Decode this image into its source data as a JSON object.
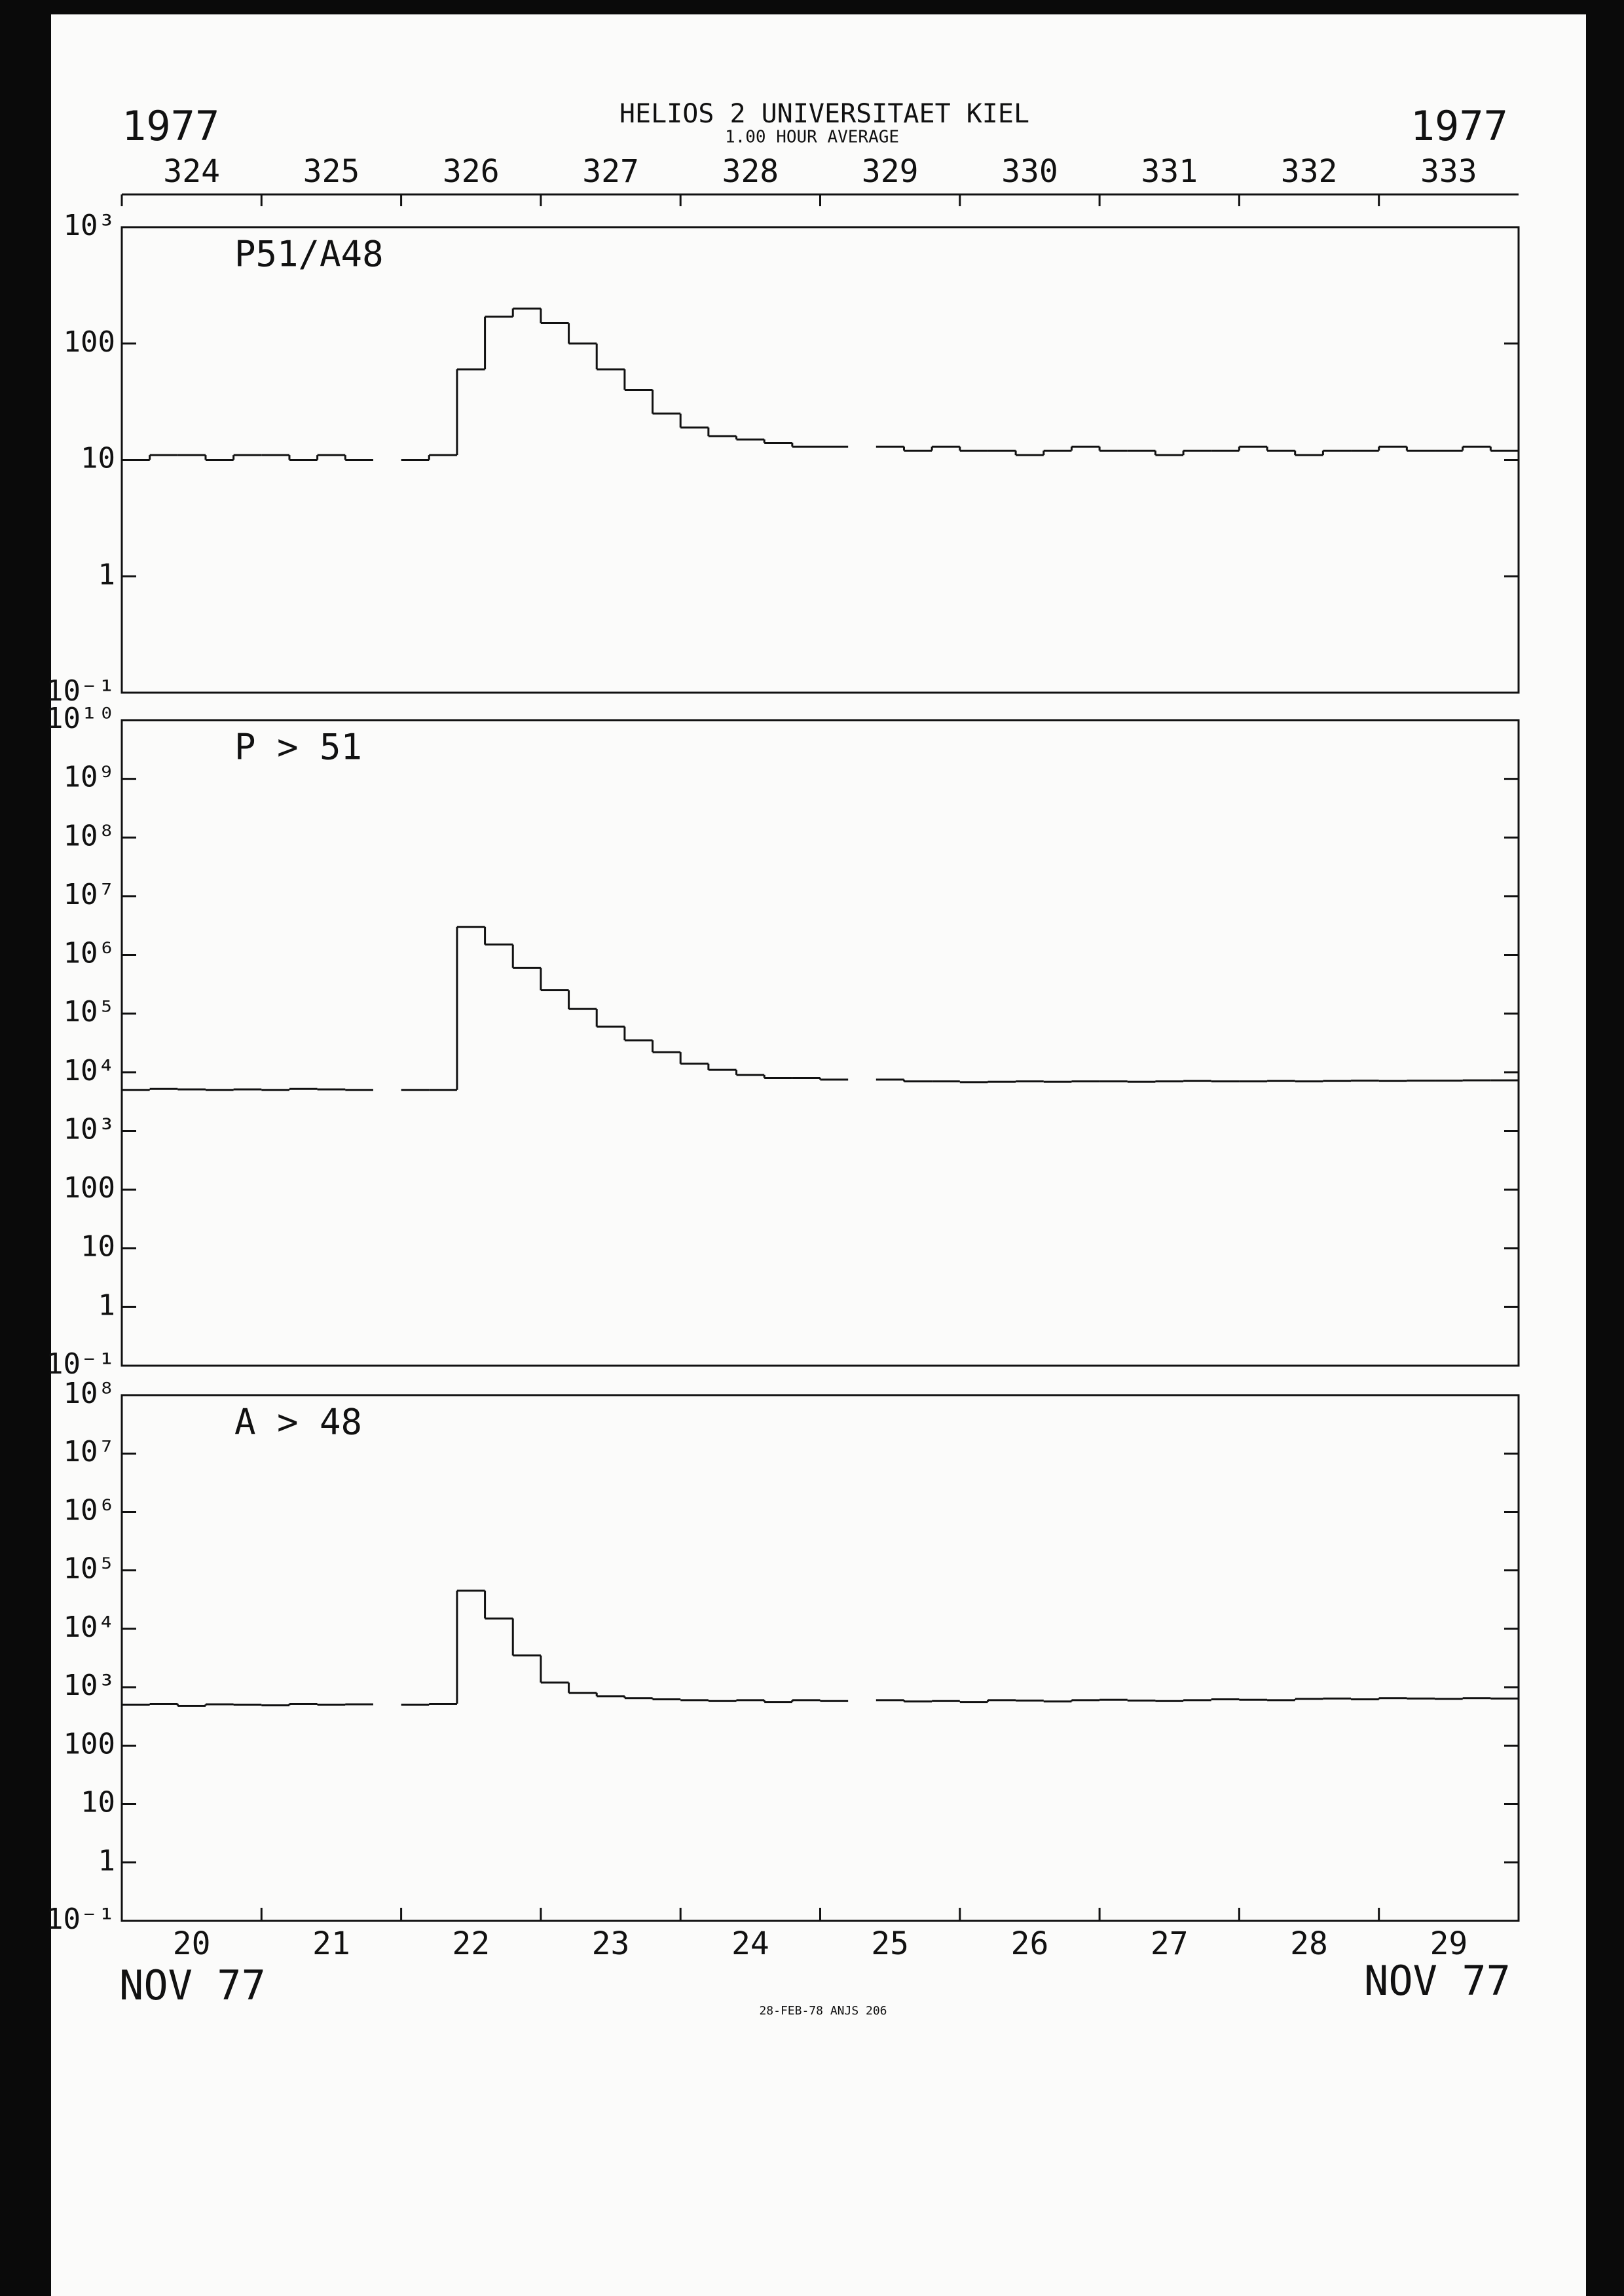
{
  "header": {
    "title": "HELIOS 2  UNIVERSITAET KIEL",
    "subtitle": "1.00 HOUR AVERAGE",
    "year_left": "1977",
    "year_right": "1977"
  },
  "footer": {
    "month_left": "NOV 77",
    "month_right": "NOV 77",
    "stamp": "28-FEB-78 ANJS 206"
  },
  "chart_data": [
    {
      "type": "step",
      "panel_label": "P51/A48",
      "log_scale": true,
      "color": "#111111",
      "xlim": [
        20,
        30
      ],
      "ylim": [
        0.1,
        1000
      ],
      "x2ticks": [
        {
          "value": 20,
          "label": "324"
        },
        {
          "value": 21,
          "label": "325"
        },
        {
          "value": 22,
          "label": "326"
        },
        {
          "value": 23,
          "label": "327"
        },
        {
          "value": 24,
          "label": "328"
        },
        {
          "value": 25,
          "label": "329"
        },
        {
          "value": 26,
          "label": "330"
        },
        {
          "value": 27,
          "label": "331"
        },
        {
          "value": 28,
          "label": "332"
        },
        {
          "value": 29,
          "label": "333"
        }
      ],
      "yticks": [
        {
          "value": 0.1,
          "label": "10⁻¹"
        },
        1,
        10,
        100,
        {
          "value": 1000,
          "label": "10³"
        }
      ],
      "x": [
        20.0,
        20.2,
        20.4,
        20.6,
        20.8,
        21.0,
        21.2,
        21.4,
        21.6,
        21.8,
        22.0,
        22.2,
        22.4,
        22.6,
        22.8,
        23.0,
        23.2,
        23.4,
        23.6,
        23.8,
        24.0,
        24.2,
        24.4,
        24.6,
        24.8,
        25.0,
        25.2,
        25.4,
        25.6,
        25.8,
        26.0,
        26.2,
        26.4,
        26.6,
        26.8,
        27.0,
        27.2,
        27.4,
        27.6,
        27.8,
        28.0,
        28.2,
        28.4,
        28.6,
        28.8,
        29.0,
        29.2,
        29.4,
        29.6,
        29.8
      ],
      "values": [
        10,
        11,
        11,
        10,
        11,
        11,
        10,
        11,
        10,
        null,
        10,
        11,
        60,
        170,
        200,
        150,
        100,
        60,
        40,
        25,
        19,
        16,
        15,
        14,
        13,
        13,
        null,
        13,
        12,
        13,
        12,
        12,
        11,
        12,
        13,
        12,
        12,
        11,
        12,
        12,
        13,
        12,
        11,
        12,
        12,
        13,
        12,
        12,
        13,
        12
      ]
    },
    {
      "type": "step",
      "panel_label": "P > 51",
      "log_scale": true,
      "color": "#111111",
      "xlim": [
        20,
        30
      ],
      "ylim": [
        0.1,
        10000000000
      ],
      "yticks": [
        {
          "value": 0.1,
          "label": "10⁻¹"
        },
        1,
        10,
        100,
        {
          "value": 1000,
          "label": "10³"
        },
        {
          "value": 10000,
          "label": "10⁴"
        },
        {
          "value": 100000,
          "label": "10⁵"
        },
        {
          "value": 1000000,
          "label": "10⁶"
        },
        {
          "value": 10000000,
          "label": "10⁷"
        },
        {
          "value": 100000000,
          "label": "10⁸"
        },
        {
          "value": 1000000000,
          "label": "10⁹"
        },
        {
          "value": 10000000000,
          "label": "10¹⁰"
        }
      ],
      "x": [
        20.0,
        20.2,
        20.4,
        20.6,
        20.8,
        21.0,
        21.2,
        21.4,
        21.6,
        21.8,
        22.0,
        22.2,
        22.4,
        22.6,
        22.8,
        23.0,
        23.2,
        23.4,
        23.6,
        23.8,
        24.0,
        24.2,
        24.4,
        24.6,
        24.8,
        25.0,
        25.2,
        25.4,
        25.6,
        25.8,
        26.0,
        26.2,
        26.4,
        26.6,
        26.8,
        27.0,
        27.2,
        27.4,
        27.6,
        27.8,
        28.0,
        28.2,
        28.4,
        28.6,
        28.8,
        29.0,
        29.2,
        29.4,
        29.6,
        29.8
      ],
      "values": [
        5000,
        5200,
        5100,
        5000,
        5100,
        5000,
        5200,
        5100,
        5000,
        null,
        5000,
        5000,
        3000000,
        1500000,
        600000,
        250000,
        120000,
        60000,
        35000,
        22000,
        14000,
        11000,
        9000,
        8000,
        8000,
        7500,
        null,
        7500,
        7000,
        7000,
        6800,
        6900,
        7000,
        6900,
        7000,
        7000,
        6900,
        7000,
        7100,
        7000,
        7000,
        7100,
        7000,
        7100,
        7200,
        7100,
        7200,
        7200,
        7300,
        7300
      ]
    },
    {
      "type": "step",
      "panel_label": "A > 48",
      "log_scale": true,
      "color": "#111111",
      "xlim": [
        20,
        30
      ],
      "ylim": [
        0.1,
        100000000
      ],
      "xticks": [
        {
          "value": 20,
          "label": "20"
        },
        {
          "value": 21,
          "label": "21"
        },
        {
          "value": 22,
          "label": "22"
        },
        {
          "value": 23,
          "label": "23"
        },
        {
          "value": 24,
          "label": "24"
        },
        {
          "value": 25,
          "label": "25"
        },
        {
          "value": 26,
          "label": "26"
        },
        {
          "value": 27,
          "label": "27"
        },
        {
          "value": 28,
          "label": "28"
        },
        {
          "value": 29,
          "label": "29"
        }
      ],
      "yticks": [
        {
          "value": 0.1,
          "label": "10⁻¹"
        },
        1,
        10,
        100,
        {
          "value": 1000,
          "label": "10³"
        },
        {
          "value": 10000,
          "label": "10⁴"
        },
        {
          "value": 100000,
          "label": "10⁵"
        },
        {
          "value": 1000000,
          "label": "10⁶"
        },
        {
          "value": 10000000,
          "label": "10⁷"
        },
        {
          "value": 100000000,
          "label": "10⁸"
        }
      ],
      "x": [
        20.0,
        20.2,
        20.4,
        20.6,
        20.8,
        21.0,
        21.2,
        21.4,
        21.6,
        21.8,
        22.0,
        22.2,
        22.4,
        22.6,
        22.8,
        23.0,
        23.2,
        23.4,
        23.6,
        23.8,
        24.0,
        24.2,
        24.4,
        24.6,
        24.8,
        25.0,
        25.2,
        25.4,
        25.6,
        25.8,
        26.0,
        26.2,
        26.4,
        26.6,
        26.8,
        27.0,
        27.2,
        27.4,
        27.6,
        27.8,
        28.0,
        28.2,
        28.4,
        28.6,
        28.8,
        29.0,
        29.2,
        29.4,
        29.6,
        29.8
      ],
      "values": [
        500,
        520,
        480,
        510,
        500,
        490,
        520,
        500,
        510,
        null,
        500,
        520,
        45000,
        15000,
        3500,
        1200,
        800,
        700,
        650,
        620,
        600,
        580,
        600,
        560,
        600,
        580,
        null,
        600,
        570,
        580,
        560,
        600,
        590,
        570,
        600,
        610,
        590,
        580,
        600,
        620,
        610,
        600,
        630,
        640,
        620,
        650,
        640,
        630,
        650,
        640
      ]
    }
  ]
}
